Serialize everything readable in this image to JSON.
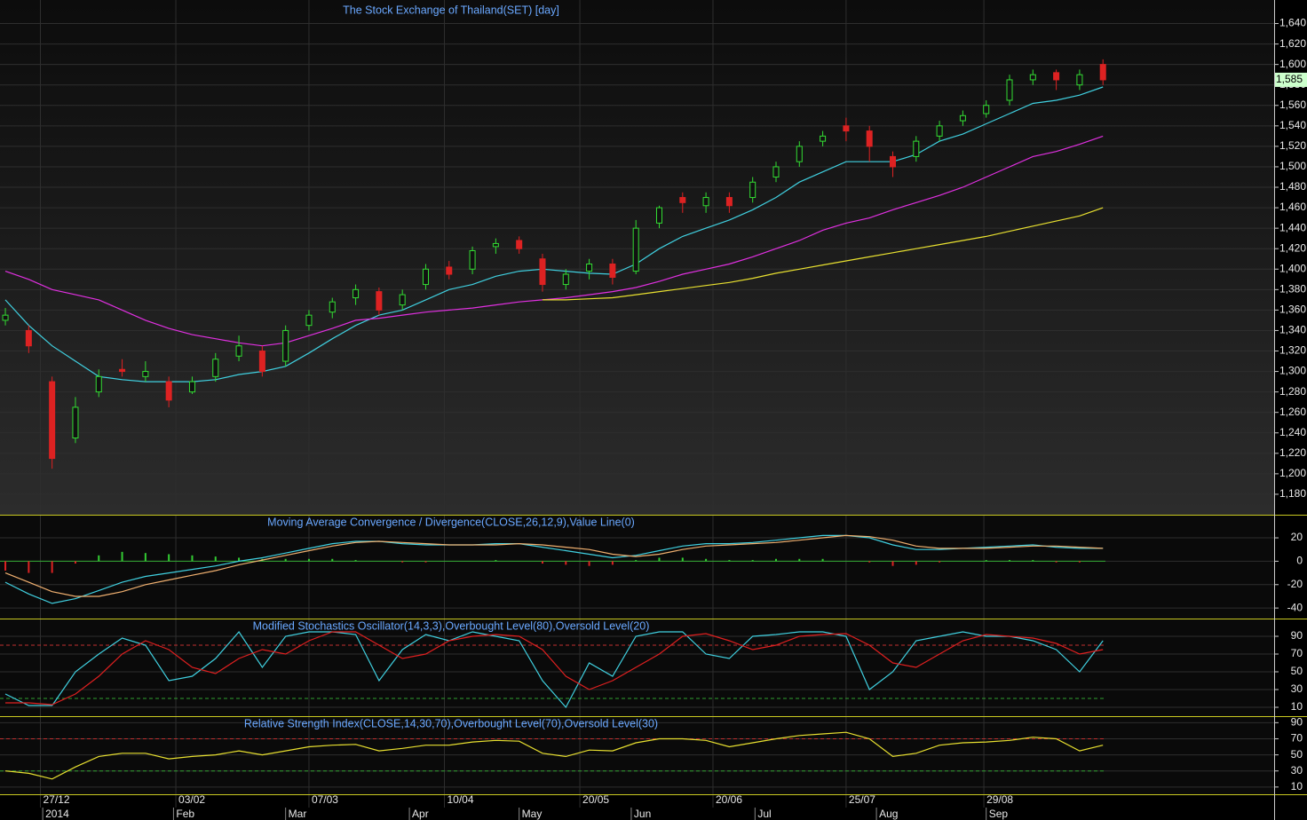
{
  "chart_data": [
    {
      "type": "candlestick",
      "title": "The Stock Exchange of Thailand(SET) [day]",
      "up_color": "#33dd33",
      "down_color": "#dd2222",
      "open": [
        1350,
        1340,
        1290,
        1235,
        1280,
        1302,
        1295,
        1290,
        1280,
        1295,
        1315,
        1320,
        1310,
        1345,
        1358,
        1372,
        1378,
        1365,
        1385,
        1402,
        1400,
        1422,
        1428,
        1410,
        1385,
        1398,
        1405,
        1398,
        1445,
        1470,
        1462,
        1470,
        1470,
        1490,
        1505,
        1525,
        1540,
        1535,
        1510,
        1510,
        1530,
        1545,
        1552,
        1565,
        1585,
        1592,
        1580,
        1600
      ],
      "high": [
        1362,
        1345,
        1295,
        1275,
        1302,
        1312,
        1310,
        1295,
        1295,
        1318,
        1335,
        1325,
        1345,
        1360,
        1372,
        1385,
        1382,
        1380,
        1405,
        1408,
        1422,
        1430,
        1432,
        1415,
        1400,
        1410,
        1410,
        1448,
        1462,
        1475,
        1475,
        1475,
        1490,
        1505,
        1525,
        1535,
        1548,
        1540,
        1515,
        1530,
        1545,
        1555,
        1565,
        1590,
        1595,
        1595,
        1595,
        1605
      ],
      "low": [
        1345,
        1318,
        1205,
        1230,
        1275,
        1295,
        1290,
        1265,
        1278,
        1290,
        1310,
        1295,
        1305,
        1340,
        1352,
        1365,
        1355,
        1360,
        1380,
        1390,
        1395,
        1415,
        1415,
        1378,
        1380,
        1390,
        1385,
        1395,
        1440,
        1455,
        1455,
        1455,
        1465,
        1485,
        1500,
        1520,
        1525,
        1505,
        1490,
        1505,
        1525,
        1540,
        1548,
        1560,
        1580,
        1575,
        1575,
        1580
      ],
      "close": [
        1355,
        1325,
        1215,
        1265,
        1295,
        1300,
        1300,
        1272,
        1290,
        1312,
        1325,
        1300,
        1340,
        1355,
        1368,
        1380,
        1360,
        1375,
        1400,
        1395,
        1418,
        1425,
        1420,
        1385,
        1395,
        1405,
        1392,
        1440,
        1460,
        1465,
        1470,
        1462,
        1485,
        1500,
        1520,
        1530,
        1535,
        1520,
        1500,
        1525,
        1540,
        1550,
        1560,
        1585,
        1590,
        1585,
        1590,
        1585
      ],
      "series": [
        {
          "color": "#40d0e0",
          "values": [
            1370,
            1345,
            1325,
            1310,
            1295,
            1292,
            1290,
            1290,
            1290,
            1292,
            1297,
            1300,
            1305,
            1318,
            1332,
            1345,
            1355,
            1360,
            1370,
            1380,
            1385,
            1393,
            1398,
            1400,
            1398,
            1396,
            1395,
            1405,
            1420,
            1432,
            1440,
            1448,
            1458,
            1470,
            1485,
            1495,
            1505,
            1505,
            1505,
            1512,
            1525,
            1532,
            1542,
            1552,
            1562,
            1565,
            1570,
            1578
          ]
        },
        {
          "color": "#e030e0",
          "values": [
            1398,
            1390,
            1380,
            1375,
            1370,
            1360,
            1350,
            1342,
            1336,
            1332,
            1328,
            1325,
            1328,
            1335,
            1342,
            1350,
            1352,
            1355,
            1358,
            1360,
            1362,
            1365,
            1368,
            1370,
            1372,
            1375,
            1378,
            1382,
            1388,
            1395,
            1400,
            1405,
            1412,
            1420,
            1428,
            1438,
            1445,
            1450,
            1458,
            1465,
            1472,
            1480,
            1490,
            1500,
            1510,
            1515,
            1522,
            1530
          ]
        },
        {
          "color": "#e8e030",
          "values": [
            null,
            null,
            null,
            null,
            null,
            null,
            null,
            null,
            null,
            null,
            null,
            null,
            null,
            null,
            null,
            null,
            null,
            null,
            null,
            null,
            null,
            null,
            null,
            1370,
            1370,
            1371,
            1372,
            1375,
            1378,
            1381,
            1384,
            1387,
            1391,
            1396,
            1400,
            1404,
            1408,
            1412,
            1416,
            1420,
            1424,
            1428,
            1432,
            1437,
            1442,
            1447,
            1452,
            1460
          ]
        }
      ],
      "last_price": {
        "value": 1585,
        "label": "1,585"
      },
      "ylim": [
        1160,
        1663
      ],
      "yticks": [
        {
          "value": 1180,
          "label": "1,180"
        },
        {
          "value": 1200,
          "label": "1,200"
        },
        {
          "value": 1220,
          "label": "1,220"
        },
        {
          "value": 1240,
          "label": "1,240"
        },
        {
          "value": 1260,
          "label": "1,260"
        },
        {
          "value": 1280,
          "label": "1,280"
        },
        {
          "value": 1300,
          "label": "1,300"
        },
        {
          "value": 1320,
          "label": "1,320"
        },
        {
          "value": 1340,
          "label": "1,340"
        },
        {
          "value": 1360,
          "label": "1,360"
        },
        {
          "value": 1380,
          "label": "1,380"
        },
        {
          "value": 1400,
          "label": "1,400"
        },
        {
          "value": 1420,
          "label": "1,420"
        },
        {
          "value": 1440,
          "label": "1,440"
        },
        {
          "value": 1460,
          "label": "1,460"
        },
        {
          "value": 1480,
          "label": "1,480"
        },
        {
          "value": 1500,
          "label": "1,500"
        },
        {
          "value": 1520,
          "label": "1,520"
        },
        {
          "value": 1540,
          "label": "1,540"
        },
        {
          "value": 1560,
          "label": "1,560"
        },
        {
          "value": 1580,
          "label": "1,580"
        },
        {
          "value": 1600,
          "label": "1,600"
        },
        {
          "value": 1620,
          "label": "1,620"
        },
        {
          "value": 1640,
          "label": "1,640"
        }
      ],
      "grid": true
    },
    {
      "type": "macd",
      "title": "Moving Average Convergence / Divergence(CLOSE,26,12,9),Value Line(0)",
      "series": [
        {
          "color": "#40d0e0",
          "values": [
            -18,
            -28,
            -36,
            -32,
            -25,
            -18,
            -13,
            -10,
            -7,
            -4,
            0,
            3,
            7,
            11,
            15,
            17,
            17,
            15,
            14,
            14,
            14,
            15,
            15,
            12,
            9,
            6,
            3,
            5,
            9,
            13,
            15,
            15,
            16,
            18,
            20,
            22,
            22,
            20,
            14,
            10,
            10,
            11,
            12,
            13,
            14,
            12,
            11,
            11
          ]
        },
        {
          "color": "#f0b070",
          "values": [
            -10,
            -18,
            -26,
            -30,
            -30,
            -26,
            -20,
            -16,
            -12,
            -8,
            -3,
            1,
            5,
            9,
            13,
            16,
            17,
            16,
            15,
            14,
            14,
            14,
            15,
            14,
            12,
            10,
            6,
            4,
            6,
            10,
            13,
            14,
            15,
            16,
            18,
            20,
            22,
            21,
            18,
            13,
            11,
            11,
            11,
            12,
            13,
            13,
            12,
            11
          ]
        }
      ],
      "histogram": [
        -8,
        -10,
        -10,
        -2,
        5,
        8,
        7,
        6,
        5,
        4,
        3,
        2,
        2,
        2,
        2,
        1,
        0,
        -1,
        -1,
        0,
        0,
        1,
        0,
        -2,
        -3,
        -4,
        -3,
        1,
        3,
        3,
        2,
        1,
        1,
        2,
        2,
        2,
        0,
        -1,
        -4,
        -3,
        -1,
        0,
        1,
        1,
        1,
        -1,
        -1,
        0
      ],
      "up_color": "#33cc33",
      "down_color": "#dd2222",
      "levels": [
        {
          "value": 0,
          "color": "#33aa33"
        }
      ],
      "ylim": [
        -49,
        39
      ],
      "yticks": [
        -40,
        -20,
        0,
        20
      ]
    },
    {
      "type": "line",
      "title": "Modified Stochastics Oscillator(14,3,3),Overbought Level(80),Oversold Level(20)",
      "series": [
        {
          "color": "#40d0e0",
          "values": [
            25,
            12,
            12,
            50,
            70,
            88,
            80,
            40,
            45,
            65,
            95,
            55,
            90,
            95,
            95,
            92,
            40,
            75,
            92,
            85,
            95,
            90,
            85,
            40,
            10,
            60,
            45,
            90,
            95,
            95,
            70,
            65,
            90,
            92,
            95,
            95,
            90,
            30,
            50,
            85,
            90,
            95,
            90,
            90,
            85,
            75,
            50,
            85
          ]
        },
        {
          "color": "#e02020",
          "values": [
            15,
            15,
            13,
            25,
            45,
            70,
            85,
            75,
            55,
            48,
            65,
            75,
            70,
            85,
            95,
            95,
            80,
            65,
            70,
            85,
            90,
            92,
            90,
            75,
            45,
            30,
            40,
            55,
            70,
            90,
            93,
            85,
            75,
            80,
            90,
            92,
            93,
            80,
            60,
            55,
            70,
            85,
            92,
            90,
            88,
            82,
            70,
            75
          ]
        }
      ],
      "levels": [
        {
          "value": 80,
          "color": "#c03030"
        },
        {
          "value": 20,
          "color": "#30a030"
        }
      ],
      "ylim": [
        0,
        109
      ],
      "yticks": [
        10,
        30,
        50,
        70,
        90
      ]
    },
    {
      "type": "line",
      "title": "Relative Strength Index(CLOSE,14,30,70),Overbought Level(70),Oversold Level(30)",
      "series": [
        {
          "color": "#e8e030",
          "values": [
            30,
            27,
            20,
            35,
            48,
            52,
            52,
            45,
            48,
            50,
            55,
            50,
            55,
            60,
            62,
            63,
            55,
            58,
            62,
            62,
            66,
            68,
            67,
            52,
            48,
            56,
            55,
            65,
            70,
            70,
            68,
            60,
            65,
            70,
            74,
            76,
            78,
            70,
            48,
            52,
            62,
            65,
            66,
            68,
            72,
            70,
            55,
            62
          ]
        }
      ],
      "levels": [
        {
          "value": 70,
          "color": "#c03030"
        },
        {
          "value": 30,
          "color": "#30a030"
        }
      ],
      "ylim": [
        1,
        97
      ],
      "yticks": [
        10,
        30,
        50,
        70,
        90
      ],
      "xlim": [
        -0.23,
        54.33
      ],
      "xticks": [
        {
          "value": 1.5,
          "label": "27/12"
        },
        {
          "value": 7.3,
          "label": "03/02"
        },
        {
          "value": 13,
          "label": "07/03"
        },
        {
          "value": 18.8,
          "label": "10/04"
        },
        {
          "value": 24.6,
          "label": "20/05"
        },
        {
          "value": 30.3,
          "label": "20/06"
        },
        {
          "value": 36,
          "label": "25/07"
        },
        {
          "value": 41.9,
          "label": "29/08"
        }
      ],
      "month_ticks": [
        {
          "value": 1.6,
          "label": "2014"
        },
        {
          "value": 7.2,
          "label": "Feb"
        },
        {
          "value": 12,
          "label": "Mar"
        },
        {
          "value": 17.3,
          "label": "Apr"
        },
        {
          "value": 22,
          "label": "May"
        },
        {
          "value": 26.8,
          "label": "Jun"
        },
        {
          "value": 32.1,
          "label": "Jul"
        },
        {
          "value": 37.3,
          "label": "Aug"
        },
        {
          "value": 42,
          "label": "Sep"
        }
      ]
    }
  ]
}
